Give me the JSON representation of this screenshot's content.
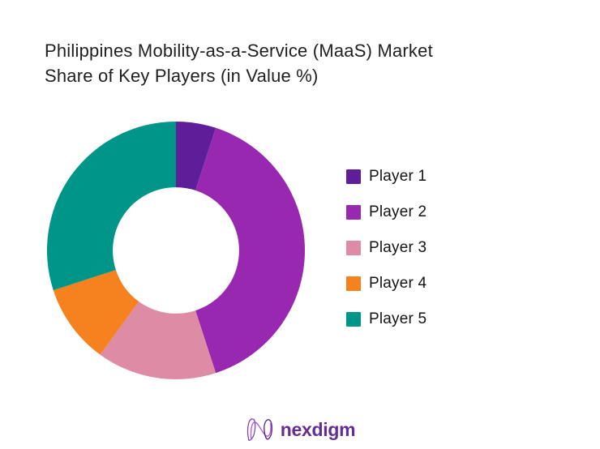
{
  "page": {
    "background": "#ffffff"
  },
  "title": {
    "full_text": "Philippines Mobility-as-a-Service (MaaS) Market Share of Key Players (in Value %)",
    "line1": "Philippines Mobility-as-a-Service (MaaS) Market",
    "line2": "Share of Key Players (in Value %)",
    "color": "#1f1f1f"
  },
  "chart_data": {
    "type": "pie",
    "subtype": "donut",
    "title": "Philippines Mobility-as-a-Service (MaaS) Market Share of Key Players (in Value %)",
    "unit": "%",
    "categories": [
      "Player 1",
      "Player 2",
      "Player 3",
      "Player 4",
      "Player 5"
    ],
    "values": [
      5,
      40,
      15,
      10,
      30
    ],
    "colors": [
      "#5E1E99",
      "#9728AF",
      "#DE8CA6",
      "#F5811F",
      "#009589"
    ],
    "start_angle_deg": 0,
    "direction": "clockwise",
    "inner_radius_ratio": 0.49,
    "legend_position": "right",
    "data_labels": false,
    "grid": false
  },
  "footer": {
    "brand": "nexdigm",
    "brand_color": "#662D91",
    "icon_colors": [
      "#8A3FC6",
      "#A958E0",
      "#5B1E99"
    ]
  }
}
